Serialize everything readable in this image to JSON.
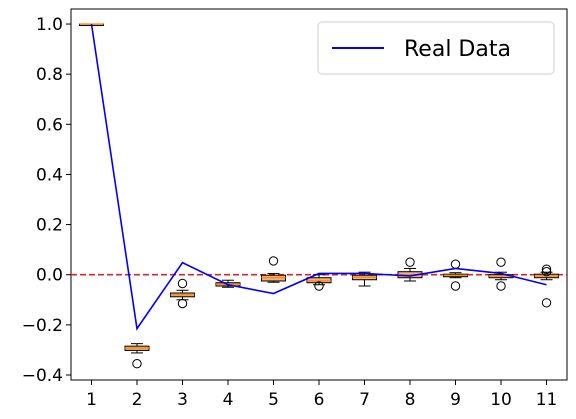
{
  "chart_data": {
    "type": "box",
    "title": "",
    "xlabel": "",
    "ylabel": "",
    "categories": [
      "1",
      "2",
      "3",
      "4",
      "5",
      "6",
      "7",
      "8",
      "9",
      "10",
      "11"
    ],
    "ylim": [
      -0.42,
      1.06
    ],
    "yticks": [
      -0.4,
      -0.2,
      0.0,
      0.2,
      0.4,
      0.6,
      0.8,
      1.0
    ],
    "ytick_labels": [
      "−0.4",
      "−0.2",
      "0.0",
      "0.2",
      "0.4",
      "0.6",
      "0.8",
      "1.0"
    ],
    "grid": false,
    "legend": {
      "placement": "top-right",
      "entries": [
        "Real Data"
      ]
    },
    "reference_line": {
      "y": 0.0,
      "style": "dashed",
      "color": "#d62728"
    },
    "boxes": [
      {
        "x": 1,
        "q1": 1.0,
        "median": 1.0,
        "q3": 1.0,
        "whisker_low": 1.0,
        "whisker_high": 1.0,
        "outliers": []
      },
      {
        "x": 2,
        "q1": -0.302,
        "median": -0.293,
        "q3": -0.285,
        "whisker_low": -0.312,
        "whisker_high": -0.275,
        "outliers": [
          -0.355
        ]
      },
      {
        "x": 3,
        "q1": -0.088,
        "median": -0.08,
        "q3": -0.073,
        "whisker_low": -0.1,
        "whisker_high": -0.062,
        "outliers": [
          -0.035,
          -0.115
        ]
      },
      {
        "x": 4,
        "q1": -0.045,
        "median": -0.038,
        "q3": -0.032,
        "whisker_low": -0.05,
        "whisker_high": -0.022,
        "outliers": []
      },
      {
        "x": 5,
        "q1": -0.025,
        "median": -0.012,
        "q3": -0.002,
        "whisker_low": -0.03,
        "whisker_high": 0.005,
        "outliers": [
          0.055
        ]
      },
      {
        "x": 6,
        "q1": -0.032,
        "median": -0.025,
        "q3": -0.012,
        "whisker_low": -0.04,
        "whisker_high": 0.0,
        "outliers": [
          -0.045
        ]
      },
      {
        "x": 7,
        "q1": -0.02,
        "median": -0.01,
        "q3": -0.002,
        "whisker_low": -0.045,
        "whisker_high": 0.01,
        "outliers": []
      },
      {
        "x": 8,
        "q1": -0.012,
        "median": 0.0,
        "q3": 0.012,
        "whisker_low": -0.025,
        "whisker_high": 0.025,
        "outliers": [
          0.05
        ]
      },
      {
        "x": 9,
        "q1": -0.008,
        "median": -0.002,
        "q3": 0.002,
        "whisker_low": -0.012,
        "whisker_high": 0.008,
        "outliers": [
          0.042,
          -0.045
        ]
      },
      {
        "x": 10,
        "q1": -0.012,
        "median": -0.005,
        "q3": 0.0,
        "whisker_low": -0.02,
        "whisker_high": 0.01,
        "outliers": [
          0.05,
          -0.045
        ]
      },
      {
        "x": 11,
        "q1": -0.012,
        "median": -0.005,
        "q3": 0.002,
        "whisker_low": -0.02,
        "whisker_high": 0.01,
        "outliers": [
          0.022,
          0.012,
          -0.112
        ]
      }
    ],
    "series": [
      {
        "name": "Real Data",
        "color": "#0000ff",
        "x": [
          1,
          2,
          3,
          4,
          5,
          6,
          7,
          8,
          9,
          10,
          11
        ],
        "values": [
          1.0,
          -0.215,
          0.048,
          -0.04,
          -0.075,
          0.005,
          0.005,
          -0.005,
          0.025,
          0.005,
          -0.04
        ]
      }
    ],
    "colors": {
      "box_fill": "#f4b183",
      "box_edge": "#000000",
      "median": "#ff8c00",
      "line": "#0000ff",
      "refline": "#d62728"
    }
  }
}
